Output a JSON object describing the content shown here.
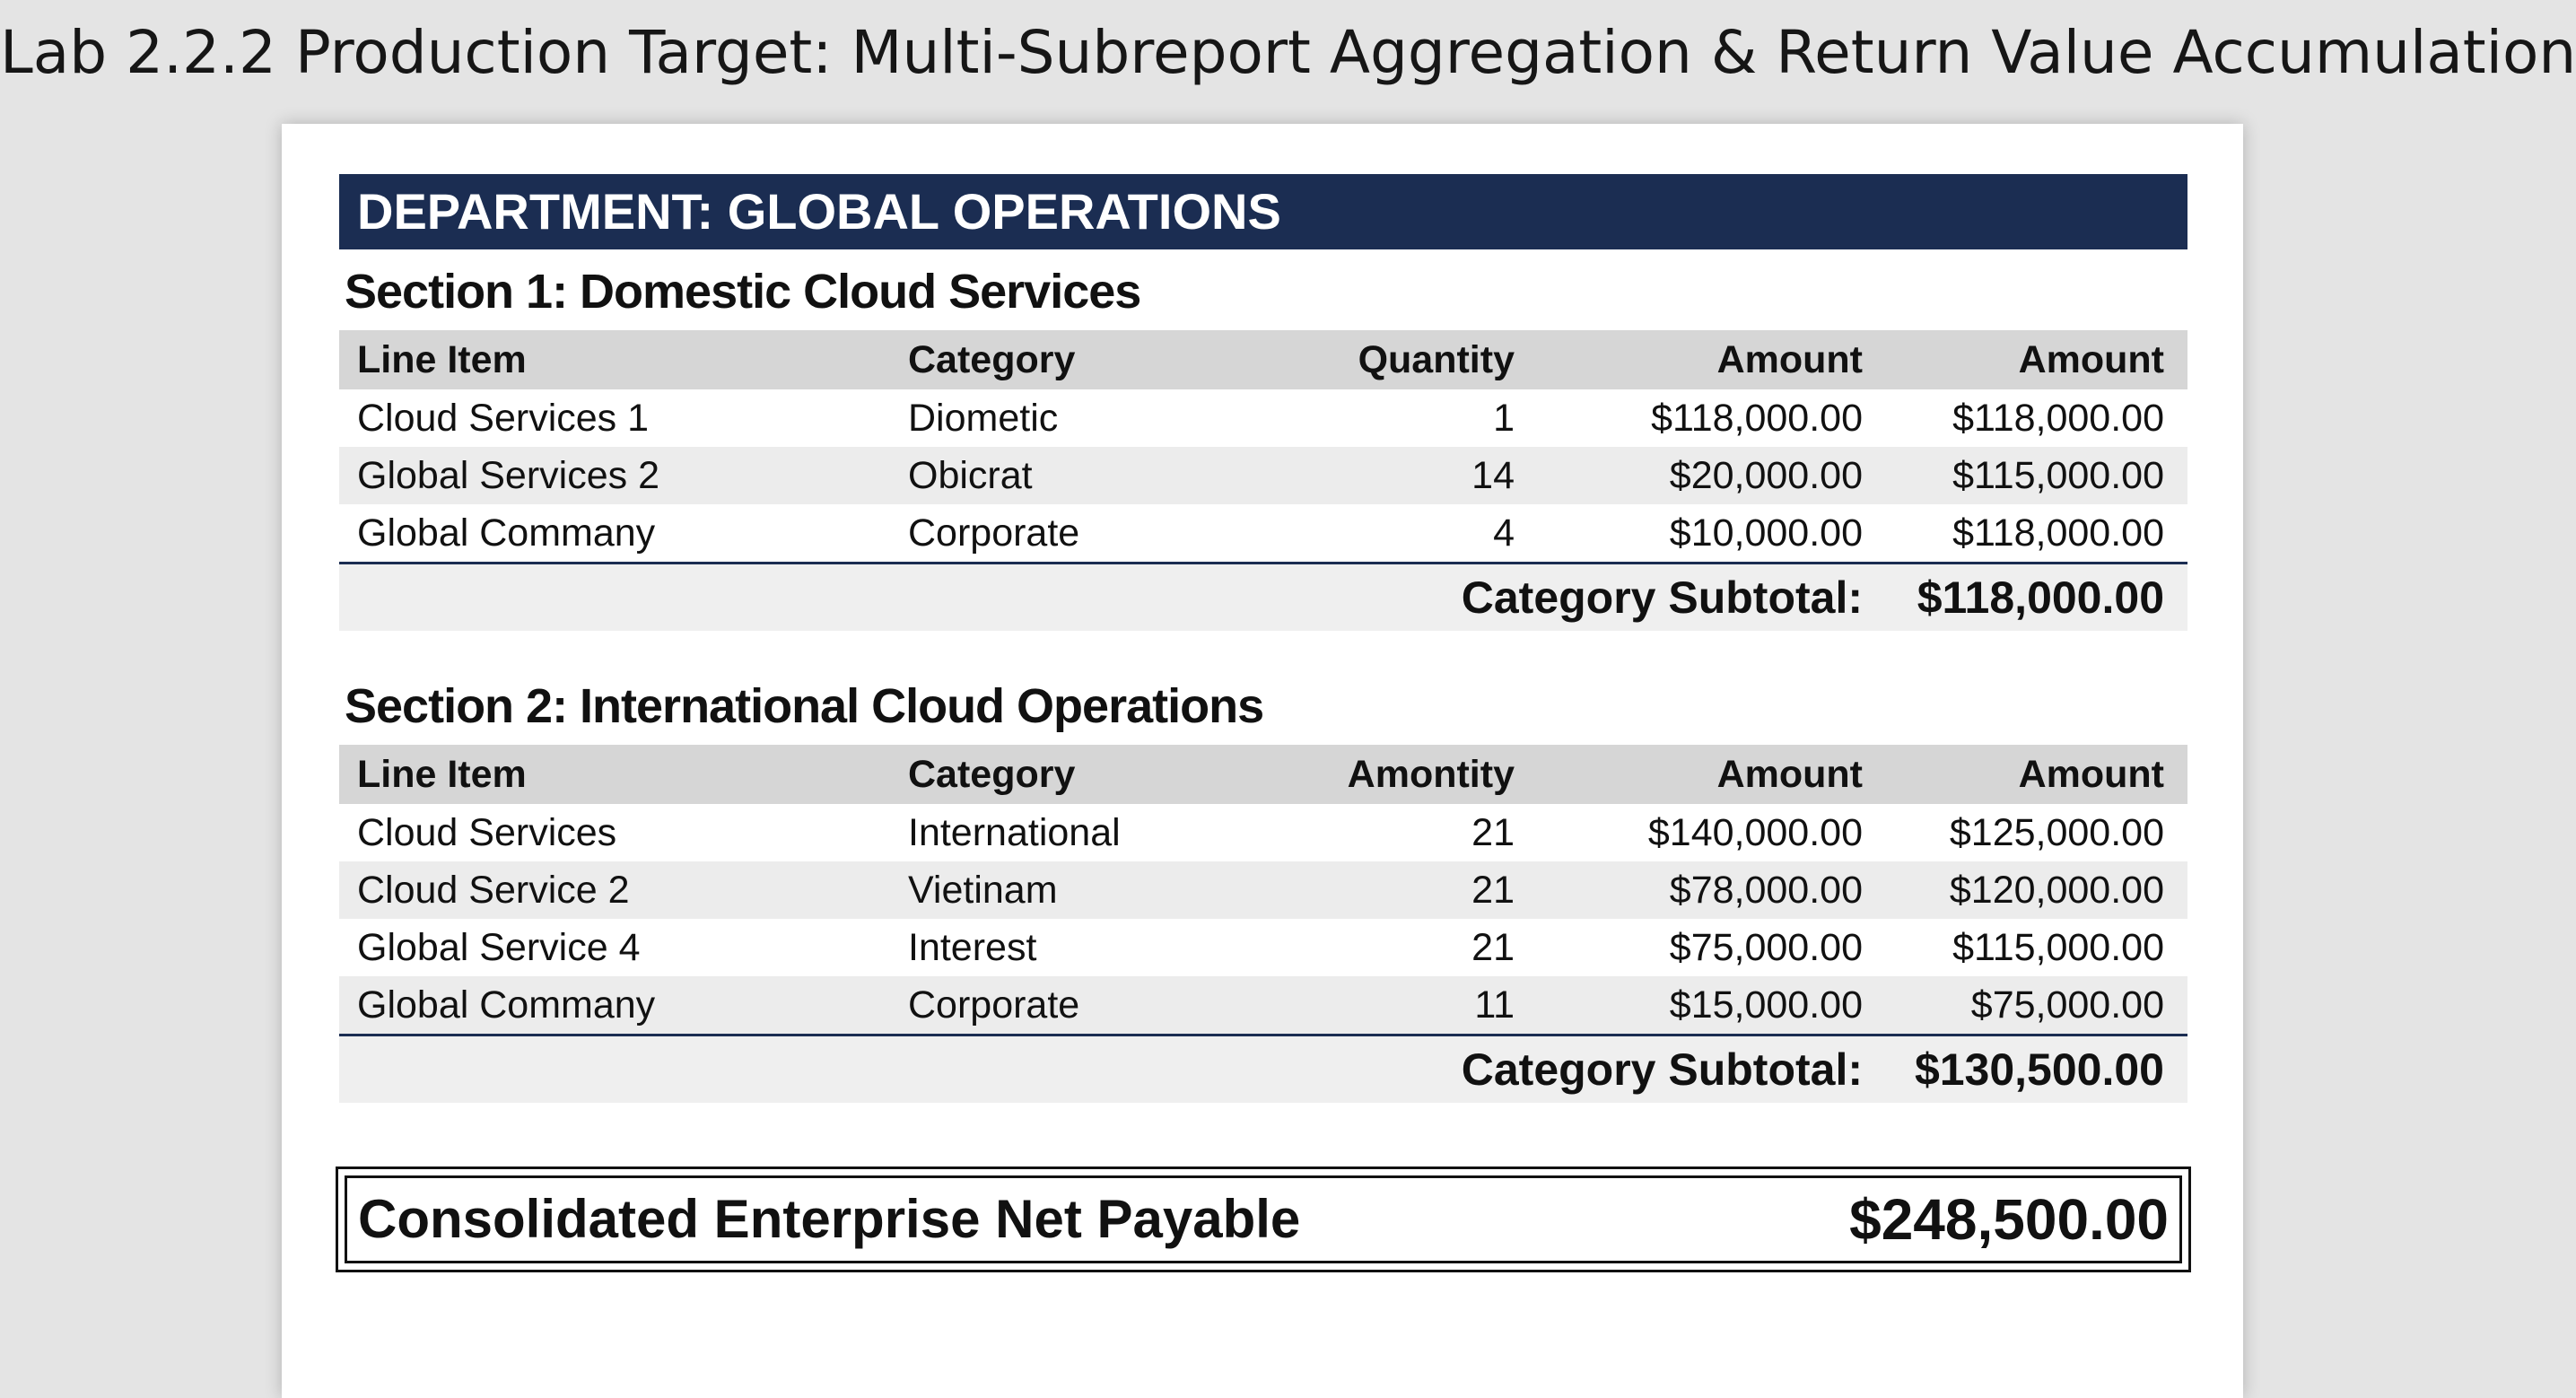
{
  "page_title": "Lab 2.2.2 Production Target: Multi-Subreport Aggregation & Return Value Accumulation",
  "department_header": "DEPARTMENT:  GLOBAL OPERATIONS",
  "sections": [
    {
      "title": "Section 1: Domestic Cloud Services",
      "columns": [
        "Line Item",
        "Category",
        "Quantity",
        "Amount",
        "Amount"
      ],
      "rows": [
        [
          "Cloud Services 1",
          "Diometic",
          "1",
          "$118,000.00",
          "$118,000.00"
        ],
        [
          "Global Services 2",
          "Obicrat",
          "14",
          "$20,000.00",
          "$115,000.00"
        ],
        [
          "Global Commany",
          "Corporate",
          "4",
          "$10,000.00",
          "$118,000.00"
        ]
      ],
      "subtotal_label": "Category Subtotal:",
      "subtotal_value": "$118,000.00"
    },
    {
      "title": "Section 2: International Cloud Operations",
      "columns": [
        "Line Item",
        "Category",
        "Amontity",
        "Amount",
        "Amount"
      ],
      "rows": [
        [
          "Cloud Services",
          "International",
          "21",
          "$140,000.00",
          "$125,000.00"
        ],
        [
          "Cloud Service 2",
          "Vietinam",
          "21",
          "$78,000.00",
          "$120,000.00"
        ],
        [
          "Global Service 4",
          "Interest",
          "21",
          "$75,000.00",
          "$115,000.00"
        ],
        [
          "Global Commany",
          "Corporate",
          "11",
          "$15,000.00",
          "$75,000.00"
        ]
      ],
      "subtotal_label": "Category Subtotal:",
      "subtotal_value": "$130,500.00"
    }
  ],
  "grand_total": {
    "label": "Consolidated Enterprise Net Payable",
    "value": "$248,500.00"
  },
  "colors": {
    "header_navy": "#1b2d52",
    "table_header_gray": "#d6d6d6",
    "row_alt_gray": "#ececec",
    "background": "#e4e4e4"
  }
}
